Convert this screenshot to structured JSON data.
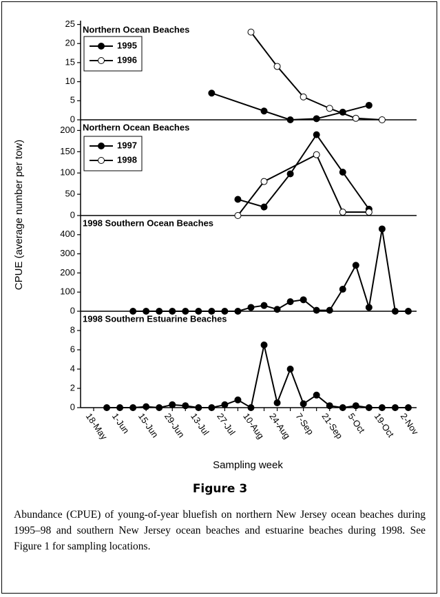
{
  "ylabel": "CPUE (average number per tow)",
  "figure_label": "Figure 3",
  "caption": "Abundance (CPUE) of young-of-year bluefish on northern New Jersey ocean beaches during 1995–98 and southern New Jersey ocean beaches and estuarine beaches during 1998. See Figure 1 for sampling locations.",
  "chart_data": [
    {
      "type": "line",
      "title": "Northern Ocean Beaches",
      "ylim": [
        0,
        26
      ],
      "yticks": [
        0,
        5,
        10,
        15,
        20,
        25
      ],
      "legend": "upper left",
      "series": [
        {
          "name": "1995",
          "color": "#000000",
          "marker_fill": "#000000",
          "values": [
            null,
            null,
            null,
            null,
            null,
            null,
            null,
            null,
            null,
            7,
            null,
            null,
            null,
            2.3,
            null,
            0,
            null,
            0.3,
            null,
            2,
            null,
            3.8,
            null,
            null,
            null
          ]
        },
        {
          "name": "1996",
          "color": "#000000",
          "marker_fill": "#ffffff",
          "values": [
            null,
            null,
            null,
            null,
            null,
            null,
            null,
            null,
            null,
            null,
            null,
            null,
            23,
            null,
            14,
            null,
            6,
            null,
            3,
            null,
            0.4,
            null,
            0,
            null,
            null
          ]
        }
      ]
    },
    {
      "type": "line",
      "title": "Northern Ocean Beaches",
      "ylim": [
        0,
        225
      ],
      "yticks": [
        0,
        50,
        100,
        150,
        200
      ],
      "legend": "upper left",
      "series": [
        {
          "name": "1997",
          "color": "#000000",
          "marker_fill": "#000000",
          "values": [
            null,
            null,
            null,
            null,
            null,
            null,
            null,
            null,
            null,
            null,
            null,
            38,
            null,
            20,
            null,
            98,
            null,
            190,
            null,
            102,
            null,
            15,
            null,
            null,
            null
          ]
        },
        {
          "name": "1998",
          "color": "#000000",
          "marker_fill": "#ffffff",
          "values": [
            null,
            null,
            null,
            null,
            null,
            null,
            null,
            null,
            null,
            null,
            null,
            0,
            null,
            80,
            null,
            null,
            null,
            143,
            null,
            8,
            null,
            8,
            null,
            null,
            null
          ]
        }
      ]
    },
    {
      "type": "line",
      "title": "1998 Southern Ocean Beaches",
      "ylim": [
        0,
        500
      ],
      "yticks": [
        0,
        100,
        200,
        300,
        400
      ],
      "series": [
        {
          "color": "#000000",
          "marker_fill": "#000000",
          "values": [
            null,
            null,
            null,
            0,
            0,
            0,
            0,
            0,
            0,
            0,
            0,
            0,
            20,
            30,
            10,
            50,
            60,
            5,
            5,
            115,
            240,
            20,
            430,
            0,
            0
          ]
        }
      ]
    },
    {
      "type": "line",
      "title": "1998 Southern Estuarine Beaches",
      "ylim": [
        0,
        10
      ],
      "yticks": [
        0,
        2,
        4,
        6,
        8
      ],
      "xlabel": "Sampling week",
      "categories": [
        "18-May",
        null,
        "1-Jun",
        null,
        "15-Jun",
        null,
        "29-Jun",
        null,
        "13-Jul",
        null,
        "27-Jul",
        null,
        "10-Aug",
        null,
        "24-Aug",
        null,
        "7-Sep",
        null,
        "21-Sep",
        null,
        "5-Oct",
        null,
        "19-Oct",
        null,
        "2-Nov"
      ],
      "series": [
        {
          "color": "#000000",
          "marker_fill": "#000000",
          "values": [
            null,
            0,
            0,
            0,
            0.1,
            0,
            0.3,
            0.2,
            0,
            0,
            0.3,
            0.8,
            0,
            6.5,
            0.5,
            4.0,
            0.4,
            1.3,
            0.2,
            0,
            0.2,
            0,
            0,
            0,
            0
          ]
        }
      ]
    }
  ]
}
